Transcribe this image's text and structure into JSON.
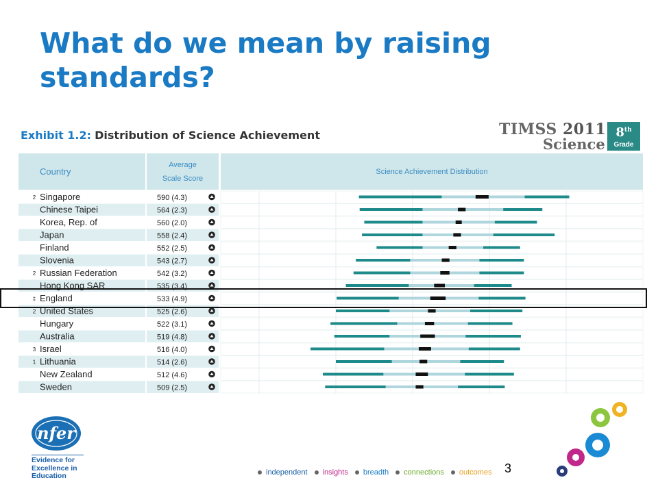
{
  "slide": {
    "title": "What do we mean by raising standards?",
    "page_number": "3"
  },
  "exhibit": {
    "label": "Exhibit 1.2:",
    "text": "Distribution of Science Achievement"
  },
  "logo": {
    "timss": "TIMSS",
    "year": "2011",
    "subject": "Science",
    "grade_number": "8",
    "grade_suffix": "th",
    "grade_label": "Grade"
  },
  "nfer": {
    "name": "nfer",
    "tagline": [
      "Evidence for",
      "Excellence in",
      "Education"
    ]
  },
  "footer": {
    "items": [
      {
        "label": "independent",
        "color": "#1a5fa8"
      },
      {
        "label": "insights",
        "color": "#c0288a"
      },
      {
        "label": "breadth",
        "color": "#1a7ac4"
      },
      {
        "label": "connections",
        "color": "#6aa82a"
      },
      {
        "label": "outcomes",
        "color": "#e8a020"
      }
    ]
  },
  "chart_data": {
    "type": "table",
    "title": "Distribution of Science Achievement",
    "columns": [
      "Country",
      "Average Scale Score",
      "Science Achievement Distribution"
    ],
    "rows": [
      {
        "note": "2",
        "country": "Singapore",
        "score": "590 (4.3)",
        "p5": 430,
        "p25": 538,
        "ci": [
          582,
          599
        ],
        "p75": 646,
        "p95": 704
      },
      {
        "note": "",
        "country": "Chinese Taipei",
        "score": "564 (2.3)",
        "p5": 431,
        "p25": 513,
        "ci": [
          559,
          569
        ],
        "p75": 618,
        "p95": 669
      },
      {
        "note": "",
        "country": "Korea, Rep. of",
        "score": "560 (2.0)",
        "p5": 437,
        "p25": 513,
        "ci": [
          556,
          564
        ],
        "p75": 607,
        "p95": 662
      },
      {
        "note": "",
        "country": "Japan",
        "score": "558 (2.4)",
        "p5": 434,
        "p25": 513,
        "ci": [
          553,
          563
        ],
        "p75": 605,
        "p95": 685
      },
      {
        "note": "",
        "country": "Finland",
        "score": "552 (2.5)",
        "p5": 453,
        "p25": 513,
        "ci": [
          547,
          557
        ],
        "p75": 592,
        "p95": 640
      },
      {
        "note": "",
        "country": "Slovenia",
        "score": "543 (2.7)",
        "p5": 426,
        "p25": 497,
        "ci": [
          538,
          548
        ],
        "p75": 587,
        "p95": 645
      },
      {
        "note": "2",
        "country": "Russian Federation",
        "score": "542 (3.2)",
        "p5": 423,
        "p25": 497,
        "ci": [
          536,
          548
        ],
        "p75": 587,
        "p95": 645
      },
      {
        "note": "",
        "country": "Hong Kong SAR",
        "score": "535 (3.4)",
        "p5": 413,
        "p25": 495,
        "ci": [
          528,
          542
        ],
        "p75": 580,
        "p95": 629
      },
      {
        "note": "‡",
        "country": "England",
        "score": "533 (4.9)",
        "p5": 401,
        "p25": 482,
        "ci": [
          523,
          543
        ],
        "p75": 586,
        "p95": 647
      },
      {
        "note": "2",
        "country": "United States",
        "score": "525 (2.6)",
        "p5": 400,
        "p25": 470,
        "ci": [
          520,
          530
        ],
        "p75": 575,
        "p95": 643
      },
      {
        "note": "",
        "country": "Hungary",
        "score": "522 (3.1)",
        "p5": 393,
        "p25": 480,
        "ci": [
          516,
          528
        ],
        "p75": 572,
        "p95": 630
      },
      {
        "note": "",
        "country": "Australia",
        "score": "519 (4.8)",
        "p5": 398,
        "p25": 470,
        "ci": [
          510,
          529
        ],
        "p75": 569,
        "p95": 641
      },
      {
        "note": "3",
        "country": "Israel",
        "score": "516 (4.0)",
        "p5": 367,
        "p25": 463,
        "ci": [
          508,
          524
        ],
        "p75": 573,
        "p95": 640
      },
      {
        "note": "1",
        "country": "Lithuania",
        "score": "514 (2.6)",
        "p5": 400,
        "p25": 473,
        "ci": [
          509,
          519
        ],
        "p75": 562,
        "p95": 619
      },
      {
        "note": "",
        "country": "New Zealand",
        "score": "512 (4.6)",
        "p5": 383,
        "p25": 462,
        "ci": [
          504,
          520
        ],
        "p75": 568,
        "p95": 632
      },
      {
        "note": "",
        "country": "Sweden",
        "score": "509 (2.5)",
        "p5": 386,
        "p25": 465,
        "ci": [
          504,
          514
        ],
        "p75": 559,
        "p95": 620
      }
    ],
    "scale_range": [
      250,
      800
    ],
    "gridlines": [
      300,
      400,
      500,
      600,
      700
    ],
    "colors": {
      "percentile_bar": "#1e8a8a",
      "middle_bar": "#aed6dc",
      "confidence": "#111111",
      "header_bg": "#cfe6ea",
      "row_alt": "#dfeef1"
    }
  }
}
